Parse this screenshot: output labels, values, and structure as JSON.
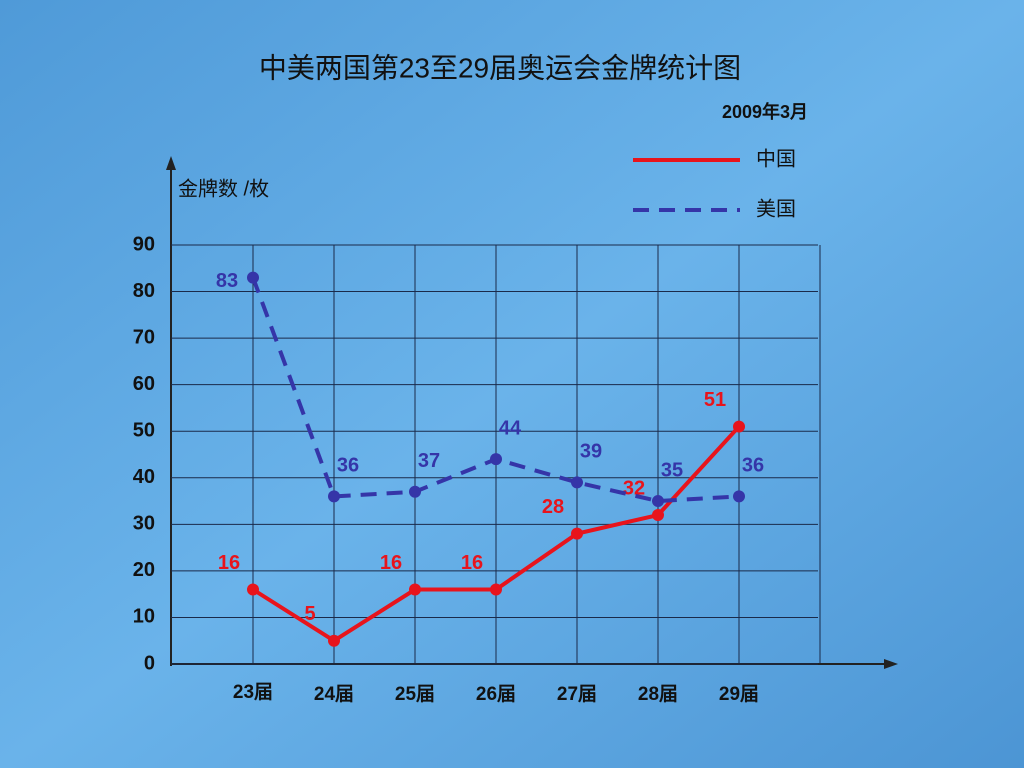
{
  "chart_data": {
    "type": "line",
    "title": "中美两国第23至29届奥运会金牌统计图",
    "subtitle": "2009年3月",
    "y_label": "金牌数 /枚",
    "categories": [
      "23届",
      "24届",
      "25届",
      "26届",
      "27届",
      "28届",
      "29届"
    ],
    "series": [
      {
        "name": "中国",
        "color": "#e8141c",
        "line_style": "solid",
        "values": [
          16,
          5,
          16,
          16,
          28,
          32,
          51
        ]
      },
      {
        "name": "美国",
        "color": "#3535a8",
        "line_style": "dashed",
        "values": [
          83,
          36,
          37,
          44,
          39,
          35,
          36
        ]
      }
    ],
    "ylim": [
      0,
      90
    ],
    "yticks": [
      0,
      10,
      20,
      30,
      40,
      50,
      60,
      70,
      80,
      90
    ],
    "grid": true
  }
}
